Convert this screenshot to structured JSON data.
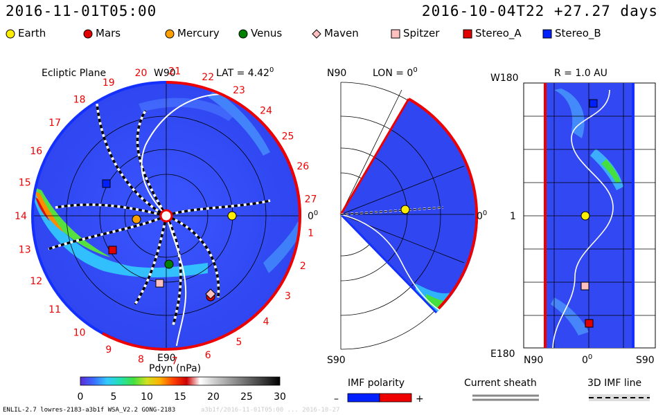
{
  "header": {
    "run_time": "2016-11-01T05:00",
    "ref_time": "2016-10-04T22 +27.27 days"
  },
  "legend": [
    {
      "name": "Earth",
      "shape": "circle",
      "color": "#ffee00"
    },
    {
      "name": "Mars",
      "shape": "circle",
      "color": "#e00000"
    },
    {
      "name": "Mercury",
      "shape": "circle",
      "color": "#ffa000"
    },
    {
      "name": "Venus",
      "shape": "circle",
      "color": "#008000"
    },
    {
      "name": "Maven",
      "shape": "diamond",
      "color": "#ffc0c0"
    },
    {
      "name": "Spitzer",
      "shape": "square",
      "color": "#ffc0c0"
    },
    {
      "name": "Stereo_A",
      "shape": "square",
      "color": "#e00000"
    },
    {
      "name": "Stereo_B",
      "shape": "square",
      "color": "#0020ff"
    }
  ],
  "ecliptic": {
    "title": "Ecliptic Plane",
    "lat": "LAT = 4.42",
    "lat_sup": "0",
    "top_label": "W90",
    "bottom_label": "E90",
    "right_label": "0",
    "right_sup": "0",
    "day_labels": [
      "14",
      "15",
      "16",
      "17",
      "18",
      "19",
      "20",
      "21",
      "22",
      "23",
      "24",
      "25",
      "26",
      "27",
      "1",
      "2",
      "3",
      "4",
      "5",
      "6",
      "7",
      "8",
      "9",
      "10",
      "11",
      "12",
      "13"
    ]
  },
  "meridional": {
    "title": "LON = 0",
    "title_sup": "0",
    "top_label": "N90",
    "bottom_label": "S90",
    "right_label": "0",
    "right_sup": "0"
  },
  "radial": {
    "title": "R = 1.0 AU",
    "top_left": "W180",
    "mid_left": "1",
    "bottom_left": "E180",
    "x_left": "N90",
    "x_mid": "0",
    "x_mid_sup": "0",
    "x_right": "S90"
  },
  "colorbar": {
    "title": "Pdyn (nPa)",
    "ticks": [
      "0",
      "5",
      "10",
      "15",
      "20",
      "25",
      "30"
    ],
    "colors": [
      "#5a2bd8",
      "#3b6cff",
      "#33c8ff",
      "#22e0b0",
      "#44e040",
      "#d0e020",
      "#ffb000",
      "#ff4000",
      "#cc0000",
      "#ffffff",
      "#d0d0d0",
      "#a8a8a8",
      "#808080",
      "#585858",
      "#303030",
      "#000000"
    ]
  },
  "keys": {
    "imf_title": "IMF polarity",
    "imf_minus": "–",
    "imf_plus": "+",
    "sheath_title": "Current sheath",
    "imf3d_title": "3D IMF line"
  },
  "footer": {
    "credit": "ENLIL-2.7 lowres-2183-a3b1f WSA_V2.2 GONG-2183",
    "credit_faded": "a3b1f/2016-11-01T05:00 ... 2016-10-27"
  }
}
